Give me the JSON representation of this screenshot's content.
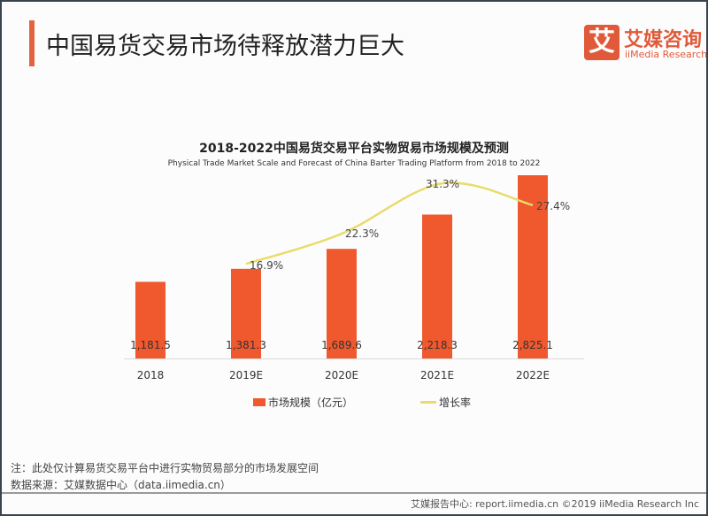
{
  "header": {
    "title": "中国易货交易市场待释放潜力巨大"
  },
  "logo": {
    "mark": "艾",
    "name_cn": "艾媒咨询",
    "name_en": "iiMedia Research"
  },
  "chart_data": {
    "type": "bar+line",
    "title": "2018-2022中国易货交易平台实物贸易市场规模及预测",
    "subtitle": "Physical Trade Market Scale and Forecast of China Barter Trading Platform from 2018 to 2022",
    "categories": [
      "2018",
      "2019E",
      "2020E",
      "2021E",
      "2022E"
    ],
    "series": [
      {
        "name": "市场规模（亿元）",
        "type": "bar",
        "color": "#f0582e",
        "values": [
          1181.5,
          1381.3,
          1689.6,
          2218.3,
          2825.1
        ],
        "labels": [
          "1,181.5",
          "1,381.3",
          "1,689.6",
          "2,218.3",
          "2,825.1"
        ]
      },
      {
        "name": "增长率",
        "type": "line",
        "color": "#e8dc6c",
        "values": [
          null,
          16.9,
          22.3,
          31.3,
          27.4
        ],
        "labels": [
          "",
          "16.9%",
          "22.3%",
          "31.3%",
          "27.4%"
        ]
      }
    ],
    "grid": false,
    "legend": "bottom"
  },
  "notes": {
    "note": "注：此处仅计算易货交易平台中进行实物贸易部分的市场发展空间",
    "source": "数据来源：艾媒数据中心（data.iimedia.cn）"
  },
  "footer": {
    "text": "艾媒报告中心: report.iimedia.cn  ©2019  iiMedia Research Inc"
  }
}
